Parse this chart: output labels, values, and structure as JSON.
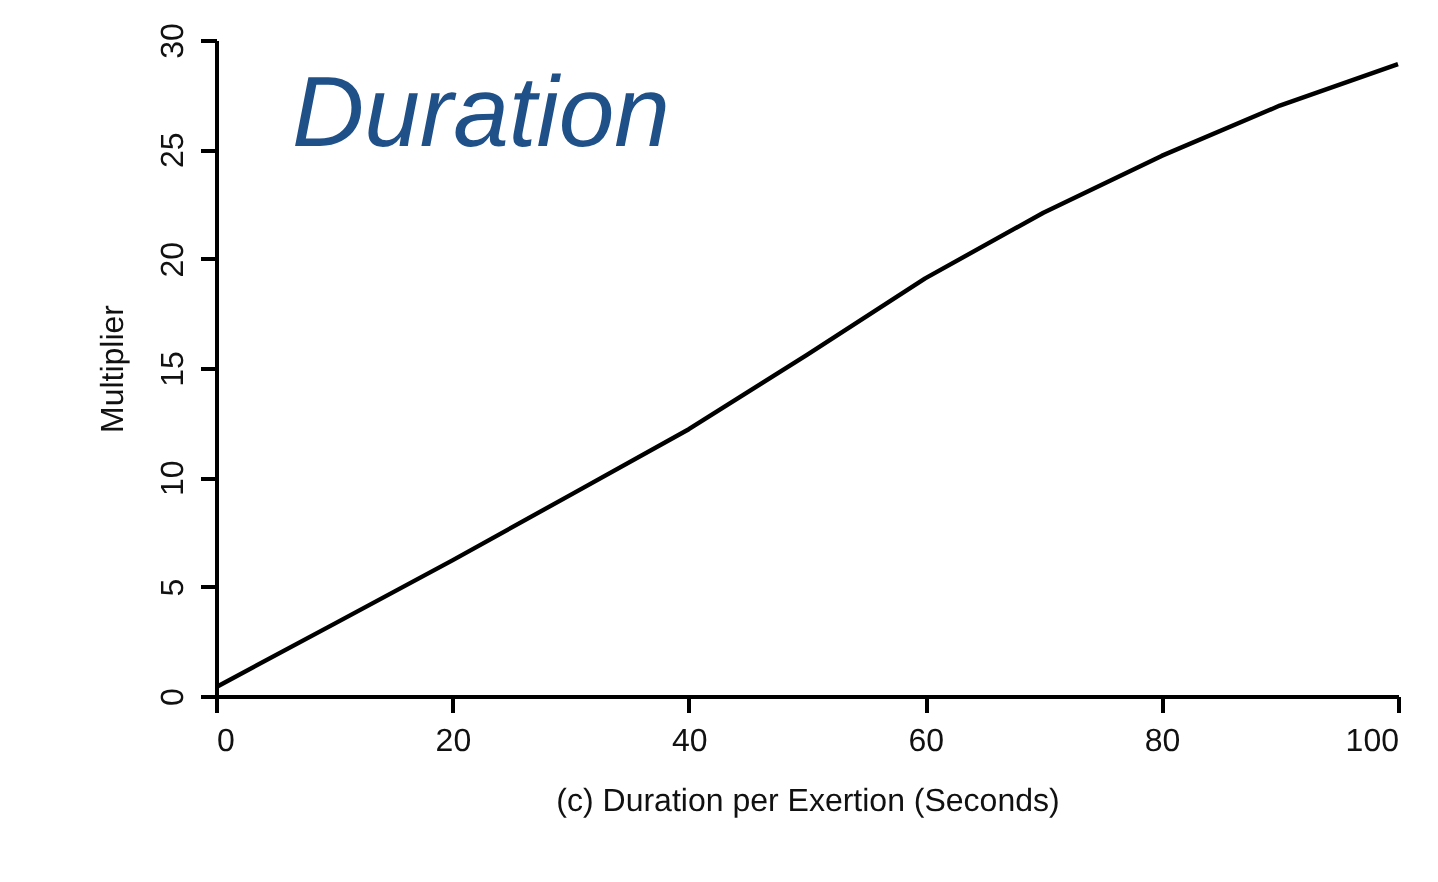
{
  "chart_data": {
    "type": "line",
    "title": "Duration",
    "xlabel": "(c) Duration per Exertion (Seconds)",
    "ylabel": "Multiplier",
    "x": [
      0,
      10,
      20,
      30,
      40,
      50,
      60,
      70,
      80,
      90,
      100
    ],
    "series": [
      {
        "color": "#000000",
        "values": [
          0.4,
          3.3,
          6.2,
          9.2,
          12.2,
          15.6,
          19.1,
          22.1,
          24.7,
          27.0,
          28.9
        ]
      }
    ],
    "xlim": [
      0,
      100
    ],
    "xticks": [
      0,
      20,
      40,
      60,
      80,
      100
    ],
    "ylim": [
      0,
      30
    ],
    "yticks": [
      0,
      5,
      10,
      15,
      20,
      25,
      30
    ],
    "grid": false,
    "legend": false,
    "marker": "none",
    "line_style": "solid"
  }
}
